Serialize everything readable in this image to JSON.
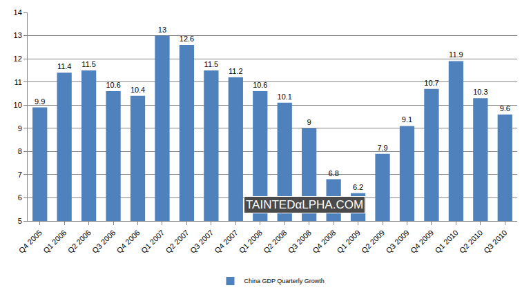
{
  "chart_data": {
    "type": "bar",
    "categories": [
      "Q4 2005",
      "Q1 2006",
      "Q2 2006",
      "Q3 2006",
      "Q4 2006",
      "Q1 2007",
      "Q2 2007",
      "Q3 2007",
      "Q4 2007",
      "Q1 2008",
      "Q2 2008",
      "Q3 2008",
      "Q4 2008",
      "Q1 2009",
      "Q2 2009",
      "Q3 2009",
      "Q4 2009",
      "Q1 2010",
      "Q2 2010",
      "Q3 2010"
    ],
    "series": [
      {
        "name": "China GDP Quarterly Growth",
        "color": "#4f81bd",
        "values": [
          9.9,
          11.4,
          11.5,
          10.6,
          10.4,
          13,
          12.6,
          11.5,
          11.2,
          10.6,
          10.1,
          9,
          6.8,
          6.2,
          7.9,
          9.1,
          10.7,
          11.9,
          10.3,
          9.6
        ]
      }
    ],
    "ylim": [
      5,
      14
    ],
    "yticks": [
      5,
      6,
      7,
      8,
      9,
      10,
      11,
      12,
      13,
      14
    ],
    "grid": true,
    "legend": "bottom",
    "data_labels": true,
    "annotations": [
      "TAINTEDαLPHA.COM"
    ]
  }
}
